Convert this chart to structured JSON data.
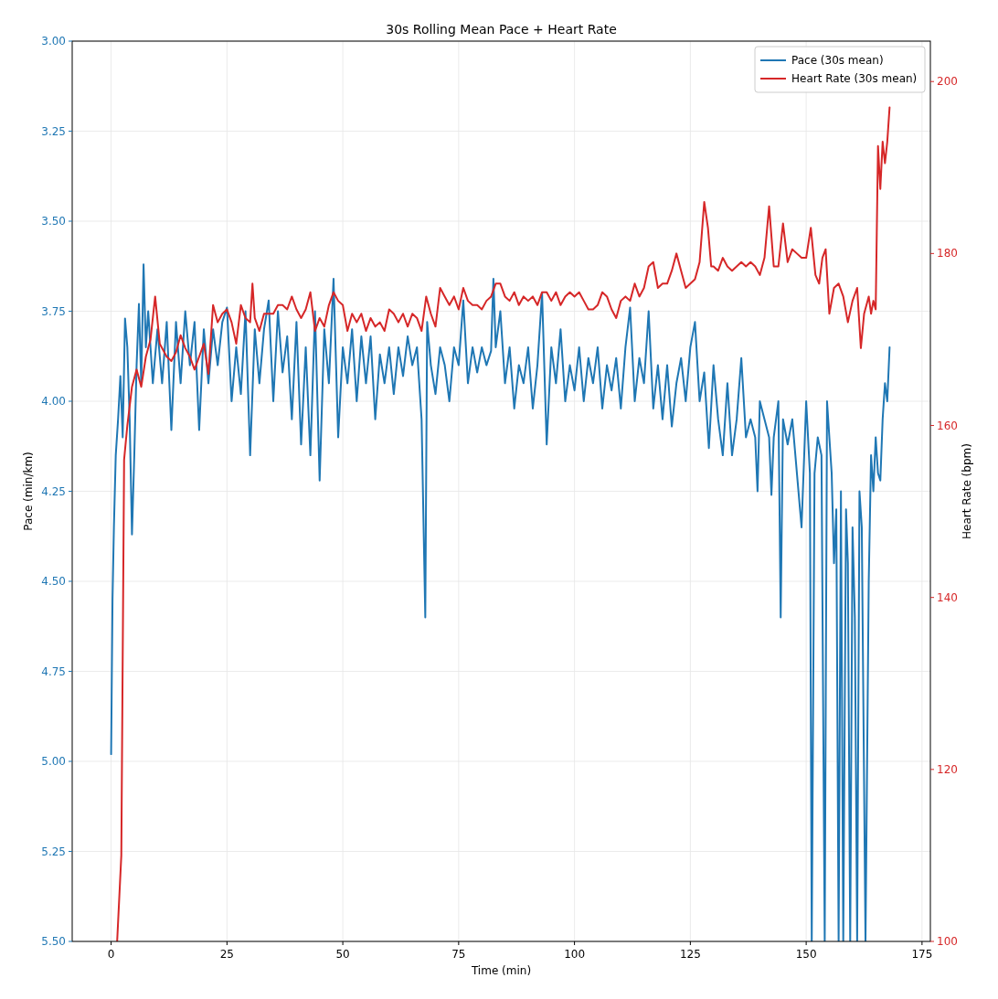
{
  "chart_data": {
    "type": "line",
    "title": "30s Rolling Mean Pace + Heart Rate",
    "xlabel": "Time (min)",
    "ylabel": "Pace (min/km)",
    "y2label": "Heart Rate (bpm)",
    "xlim": [
      -8.4,
      176.8
    ],
    "xticks": [
      0,
      25,
      50,
      75,
      100,
      125,
      150,
      175
    ],
    "ylim": [
      5.5,
      3.0
    ],
    "yticks": [
      {
        "value": 3.0,
        "label": "3.00"
      },
      {
        "value": 3.25,
        "label": "3.25"
      },
      {
        "value": 3.5,
        "label": "3.50"
      },
      {
        "value": 3.75,
        "label": "3.75"
      },
      {
        "value": 4.0,
        "label": "4.00"
      },
      {
        "value": 4.25,
        "label": "4.25"
      },
      {
        "value": 4.5,
        "label": "4.50"
      },
      {
        "value": 4.75,
        "label": "4.75"
      },
      {
        "value": 5.0,
        "label": "5.00"
      },
      {
        "value": 5.25,
        "label": "5.25"
      },
      {
        "value": 5.5,
        "label": "5.50"
      }
    ],
    "y2lim": [
      100,
      204.7
    ],
    "y2ticks": [
      100,
      120,
      140,
      160,
      180,
      200
    ],
    "grid": true,
    "legend": "top right",
    "line_style": "solid",
    "series": [
      {
        "name": "Pace (30s mean)",
        "color": "#1f77b4",
        "x": [
          0,
          0.3,
          0.6,
          1,
          1.5,
          2,
          2.5,
          3,
          3.5,
          4,
          4.5,
          5,
          5.5,
          6,
          6.5,
          7,
          7.5,
          8,
          9,
          10,
          11,
          12,
          13,
          14,
          15,
          16,
          17,
          18,
          19,
          20,
          21,
          22,
          23,
          24,
          25,
          26,
          27,
          28,
          29,
          30,
          31,
          32,
          33,
          34,
          35,
          36,
          37,
          38,
          39,
          40,
          41,
          42,
          43,
          44,
          45,
          46,
          47,
          48,
          49,
          50,
          51,
          52,
          53,
          54,
          55,
          56,
          57,
          58,
          59,
          60,
          61,
          62,
          63,
          64,
          65,
          66,
          67,
          67.8,
          68.2,
          69,
          70,
          71,
          72,
          73,
          74,
          75,
          76,
          77,
          78,
          79,
          80,
          81,
          82,
          82.5,
          83,
          84,
          85,
          86,
          87,
          88,
          89,
          90,
          91,
          92,
          93,
          94,
          95,
          96,
          97,
          98,
          99,
          100,
          101,
          102,
          103,
          104,
          105,
          106,
          107,
          108,
          109,
          110,
          111,
          112,
          113,
          114,
          115,
          116,
          117,
          118,
          119,
          120,
          121,
          122,
          123,
          124,
          125,
          126,
          127,
          128,
          129,
          130,
          131,
          132,
          133,
          134,
          135,
          136,
          137,
          138,
          139,
          139.5,
          140,
          141,
          142,
          142.5,
          143,
          144,
          144.5,
          145,
          146,
          147,
          148,
          149,
          150,
          150.8,
          151.2,
          151.8,
          152.5,
          153.3,
          154,
          154.5,
          155.5,
          156,
          156.5,
          157,
          157.5,
          158,
          158.6,
          159,
          159.5,
          160,
          160.5,
          161,
          161.5,
          162,
          162.8,
          163.5,
          164,
          164.5,
          165,
          165.5,
          166,
          166.5,
          167,
          167.5,
          168
        ],
        "values": [
          4.98,
          4.55,
          4.35,
          4.15,
          4.05,
          3.93,
          4.1,
          3.77,
          3.85,
          4.05,
          4.37,
          4.15,
          3.9,
          3.73,
          3.95,
          3.62,
          3.85,
          3.75,
          3.95,
          3.8,
          3.95,
          3.78,
          4.08,
          3.78,
          3.95,
          3.75,
          3.9,
          3.78,
          4.08,
          3.8,
          3.95,
          3.8,
          3.9,
          3.78,
          3.74,
          4.0,
          3.85,
          3.98,
          3.75,
          4.15,
          3.8,
          3.95,
          3.8,
          3.72,
          4.0,
          3.75,
          3.92,
          3.82,
          4.05,
          3.78,
          4.12,
          3.85,
          4.15,
          3.75,
          4.22,
          3.8,
          3.95,
          3.66,
          4.1,
          3.85,
          3.95,
          3.8,
          4.0,
          3.82,
          3.95,
          3.82,
          4.05,
          3.87,
          3.95,
          3.85,
          3.98,
          3.85,
          3.93,
          3.82,
          3.9,
          3.85,
          4.05,
          4.6,
          3.78,
          3.9,
          3.98,
          3.85,
          3.9,
          4.0,
          3.85,
          3.9,
          3.72,
          3.95,
          3.85,
          3.92,
          3.85,
          3.9,
          3.86,
          3.66,
          3.85,
          3.75,
          3.95,
          3.85,
          4.02,
          3.9,
          3.95,
          3.85,
          4.02,
          3.9,
          3.7,
          4.12,
          3.85,
          3.95,
          3.8,
          4.0,
          3.9,
          3.97,
          3.85,
          4.0,
          3.88,
          3.95,
          3.85,
          4.02,
          3.9,
          3.97,
          3.88,
          4.02,
          3.85,
          3.74,
          4.0,
          3.88,
          3.95,
          3.75,
          4.02,
          3.9,
          4.05,
          3.9,
          4.07,
          3.95,
          3.88,
          4.0,
          3.85,
          3.78,
          4.0,
          3.92,
          4.13,
          3.9,
          4.05,
          4.15,
          3.95,
          4.15,
          4.05,
          3.88,
          4.1,
          4.05,
          4.1,
          4.25,
          4.0,
          4.05,
          4.1,
          4.26,
          4.1,
          4.0,
          4.6,
          4.05,
          4.12,
          4.05,
          4.2,
          4.35,
          4.0,
          4.2,
          5.5,
          4.2,
          4.1,
          4.15,
          5.5,
          4.0,
          4.2,
          4.45,
          4.3,
          5.5,
          4.25,
          5.5,
          4.3,
          4.45,
          5.5,
          4.35,
          4.6,
          5.5,
          4.25,
          4.35,
          5.5,
          4.5,
          4.15,
          4.25,
          4.1,
          4.2,
          4.22,
          4.05,
          3.95,
          4.0,
          3.85
        ]
      },
      {
        "name": "Heart Rate (30s mean)",
        "color": "#d62728",
        "axis": "y2",
        "x": [
          1.3,
          2.2,
          2.8,
          3.5,
          4.5,
          5.5,
          6.5,
          7.5,
          8.5,
          9.5,
          10.5,
          12,
          13,
          14,
          15,
          16,
          17,
          18,
          19,
          20,
          21,
          22,
          23,
          24,
          25,
          26,
          27,
          28,
          29,
          30,
          30.5,
          31,
          32,
          33,
          35,
          36,
          37,
          38,
          39,
          40,
          41,
          42,
          43,
          44,
          45,
          46,
          47,
          48,
          49,
          50,
          51,
          52,
          53,
          54,
          55,
          56,
          57,
          58,
          59,
          60,
          61,
          62,
          63,
          64,
          65,
          66,
          67,
          68,
          69,
          70,
          71,
          72,
          73,
          74,
          75,
          76,
          77,
          78,
          79,
          80,
          81,
          82,
          83,
          84,
          85,
          86,
          87,
          88,
          89,
          90,
          91,
          92,
          93,
          94,
          95,
          96,
          97,
          98,
          99,
          100,
          101,
          102,
          103,
          104,
          105,
          106,
          107,
          108,
          109,
          110,
          111,
          112,
          113,
          114,
          115,
          116,
          117,
          118,
          119,
          120,
          121,
          122,
          123,
          124,
          125,
          126,
          127,
          128,
          128.8,
          129.5,
          130,
          131,
          132,
          133,
          134,
          135,
          136,
          137,
          138,
          139,
          140,
          141,
          142,
          143,
          144,
          145,
          146,
          147,
          148,
          149,
          150,
          151,
          152,
          152.8,
          153.5,
          154.2,
          155,
          156,
          157,
          158,
          159,
          160,
          161,
          161.8,
          162.5,
          163.5,
          164,
          164.5,
          165,
          165.5,
          166,
          166.5,
          167,
          167.5,
          168
        ],
        "values": [
          100,
          110,
          156,
          160,
          164.5,
          166.5,
          164.5,
          168,
          170,
          175,
          169.5,
          168,
          167.5,
          168.5,
          170.5,
          169,
          168,
          166.5,
          168,
          169.5,
          166,
          174,
          172,
          173,
          173.5,
          172,
          169.5,
          174,
          172.5,
          172,
          176.5,
          172.5,
          171,
          173,
          173,
          174,
          174,
          173.5,
          175,
          173.5,
          172.5,
          173.5,
          175.5,
          171,
          172.5,
          171.5,
          174,
          175.5,
          174.5,
          174,
          171,
          173,
          172,
          173,
          171,
          172.5,
          171.5,
          172,
          171,
          173.5,
          173,
          172,
          173,
          171.5,
          173,
          172.5,
          171,
          175,
          173,
          171.5,
          176,
          175,
          174,
          175,
          173.5,
          176,
          174.5,
          174,
          174,
          173.5,
          174.5,
          175,
          176.5,
          176.5,
          175,
          174.5,
          175.5,
          174,
          175,
          174.5,
          175,
          174,
          175.5,
          175.5,
          174.5,
          175.5,
          174,
          175,
          175.5,
          175,
          175.5,
          174.5,
          173.5,
          173.5,
          174,
          175.5,
          175,
          173.5,
          172.5,
          174.5,
          175,
          174.5,
          176.5,
          175,
          176,
          178.5,
          179,
          176,
          176.5,
          176.5,
          178,
          180,
          178,
          176,
          176.5,
          177,
          179,
          186,
          183,
          178.5,
          178.5,
          178,
          179.5,
          178.5,
          178,
          178.5,
          179,
          178.5,
          179,
          178.5,
          177.5,
          179.5,
          185.5,
          178.5,
          178.5,
          183.5,
          179,
          180.5,
          180,
          179.5,
          179.5,
          183,
          177.5,
          176.5,
          179.5,
          180.5,
          173,
          176,
          176.5,
          175,
          172,
          174.5,
          176,
          169,
          173,
          175,
          173,
          174.5,
          173.5,
          192.5,
          187.5,
          193,
          190.5,
          193,
          197
        ]
      }
    ]
  }
}
